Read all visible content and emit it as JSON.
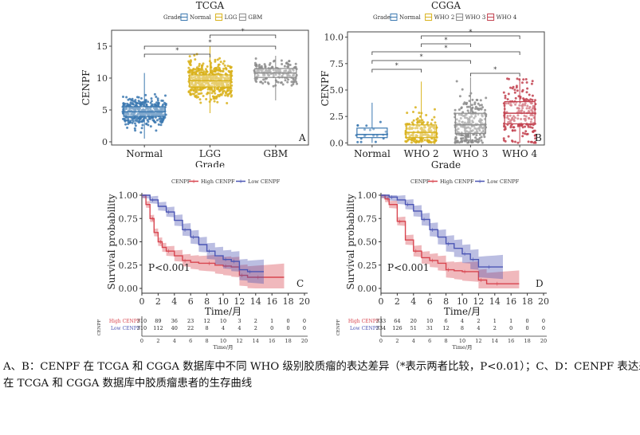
{
  "caption": {
    "line1": "A、B：CENPF 在 TCGA 和 CGGA 数据库中不同 WHO 级别胶质瘤的表达差异（*表示两者比较，P<0.01）；C、D：CENPF 表达差异",
    "line2": "在 TCGA 和 CGGA 数据库中胶质瘤患者的生存曲线"
  },
  "chart_data": [
    {
      "panel": "A",
      "type": "boxplot",
      "title": "TCGA",
      "legend_title": "Grade",
      "legend": [
        "Normal",
        "LGG",
        "GBM"
      ],
      "xlabel": "Grade",
      "ylabel": "CENPF",
      "categories": [
        "Normal",
        "LGG",
        "GBM"
      ],
      "colors": [
        "#3b78b0",
        "#d9b21c",
        "#8c8c8c"
      ],
      "yticks": [
        0,
        5,
        10,
        15
      ],
      "ylim": [
        -0.5,
        17.5
      ],
      "boxes": [
        {
          "min": 0.5,
          "q1": 4.0,
          "median": 4.7,
          "q3": 5.5,
          "max": 10.8
        },
        {
          "min": 4.5,
          "q1": 8.6,
          "median": 9.6,
          "q3": 10.5,
          "max": 15.0
        },
        {
          "min": 6.5,
          "q1": 10.1,
          "median": 10.8,
          "q3": 11.5,
          "max": 13.5
        }
      ],
      "n_points": [
        400,
        500,
        160
      ],
      "significance": [
        {
          "from": 0,
          "to": 1,
          "label": "*"
        },
        {
          "from": 1,
          "to": 2,
          "label": "*"
        },
        {
          "from": 0,
          "to": 2,
          "label": "*"
        }
      ]
    },
    {
      "panel": "B",
      "type": "boxplot",
      "title": "CGGA",
      "legend_title": "Grade",
      "legend": [
        "Normal",
        "WHO 2",
        "WHO 3",
        "WHO 4"
      ],
      "xlabel": "Grade",
      "ylabel": "CENPF",
      "categories": [
        "Normal",
        "WHO 2",
        "WHO 3",
        "WHO 4"
      ],
      "colors": [
        "#3b78b0",
        "#d9b21c",
        "#8c8c8c",
        "#c2414f"
      ],
      "yticks": [
        "0.0",
        "2.5",
        "5.0",
        "7.5",
        "10.0"
      ],
      "ylim": [
        -0.2,
        10.5
      ],
      "boxes": [
        {
          "min": 0.0,
          "q1": 0.5,
          "median": 0.8,
          "q3": 1.4,
          "max": 3.8
        },
        {
          "min": 0.0,
          "q1": 0.5,
          "median": 1.0,
          "q3": 1.7,
          "max": 5.8
        },
        {
          "min": 0.0,
          "q1": 0.9,
          "median": 1.7,
          "q3": 2.8,
          "max": 6.2
        },
        {
          "min": 0.0,
          "q1": 1.8,
          "median": 2.8,
          "q3": 3.9,
          "max": 6.1
        }
      ],
      "n_points": [
        20,
        190,
        240,
        200
      ],
      "significance": [
        {
          "from": 0,
          "to": 1,
          "label": "*"
        },
        {
          "from": 0,
          "to": 2,
          "label": "*"
        },
        {
          "from": 0,
          "to": 3,
          "label": "*"
        },
        {
          "from": 1,
          "to": 2,
          "label": "*"
        },
        {
          "from": 1,
          "to": 3,
          "label": "*"
        },
        {
          "from": 2,
          "to": 3,
          "label": "*"
        }
      ]
    },
    {
      "panel": "C",
      "type": "line",
      "legend_title": "CENPF",
      "series_names": [
        "High CENPF",
        "Low CENPF"
      ],
      "colors": [
        "#d8454f",
        "#4b55b4"
      ],
      "xlabel": "Time/月",
      "ylabel": "Survival probability",
      "xticks": [
        0,
        2,
        4,
        6,
        8,
        10,
        12,
        14,
        16,
        18,
        20
      ],
      "yticks": [
        "0.00",
        "0.25",
        "0.50",
        "0.75",
        "1.00"
      ],
      "pvalue": "P<0.001",
      "series": [
        {
          "name": "High CENPF",
          "x": [
            0,
            0.5,
            1,
            1.5,
            2,
            2.5,
            3,
            4,
            5,
            6,
            7,
            8,
            9,
            10,
            11,
            12,
            13,
            14,
            15,
            16,
            17.5
          ],
          "y": [
            1.0,
            0.9,
            0.75,
            0.6,
            0.5,
            0.44,
            0.4,
            0.35,
            0.3,
            0.28,
            0.27,
            0.27,
            0.25,
            0.24,
            0.23,
            0.14,
            0.12,
            0.12,
            0.12,
            0.12,
            0.12
          ]
        },
        {
          "name": "Low CENPF",
          "x": [
            0,
            1,
            2,
            3,
            4,
            5,
            6,
            7,
            8,
            9,
            10,
            11,
            12,
            13,
            14,
            15
          ],
          "y": [
            1.0,
            0.95,
            0.88,
            0.82,
            0.73,
            0.63,
            0.55,
            0.47,
            0.4,
            0.35,
            0.31,
            0.29,
            0.2,
            0.18,
            0.18,
            0.18
          ]
        }
      ],
      "risk_table": {
        "label": "CENPF",
        "rows": [
          {
            "name": "High CENPF",
            "values": [
              "310",
              "89",
              "36",
              "23",
              "12",
              "10",
              "3",
              "2",
              "1",
              "0",
              "0"
            ]
          },
          {
            "name": "Low CENPF",
            "values": [
              "310",
              "112",
              "40",
              "22",
              "8",
              "4",
              "4",
              "2",
              "0",
              "0",
              "0"
            ]
          }
        ],
        "xticks": [
          "0",
          "2",
          "4",
          "6",
          "8",
          "10",
          "12",
          "14",
          "16",
          "18",
          "20"
        ],
        "xlabel": "Time/月"
      }
    },
    {
      "panel": "D",
      "type": "line",
      "legend_title": "CENPF",
      "series_names": [
        "High CENPF",
        "Low CENPF"
      ],
      "colors": [
        "#d8454f",
        "#4b55b4"
      ],
      "xlabel": "Time/月",
      "ylabel": "Survival probability",
      "xticks": [
        0,
        2,
        4,
        6,
        8,
        10,
        12,
        14,
        16,
        18,
        20
      ],
      "yticks": [
        "0.00",
        "0.25",
        "0.50",
        "0.75",
        "1.00"
      ],
      "pvalue": "P<0.001",
      "series": [
        {
          "name": "High CENPF",
          "x": [
            0,
            0.5,
            1,
            2,
            3,
            4,
            5,
            6,
            7,
            8,
            9,
            10,
            11,
            12,
            13,
            14,
            15,
            17
          ],
          "y": [
            1.0,
            0.96,
            0.9,
            0.72,
            0.52,
            0.4,
            0.33,
            0.3,
            0.27,
            0.2,
            0.19,
            0.18,
            0.18,
            0.09,
            0.05,
            0.05,
            0.05,
            0.05
          ]
        },
        {
          "name": "Low CENPF",
          "x": [
            0,
            1,
            2,
            3,
            4,
            5,
            6,
            7,
            8,
            9,
            10,
            11,
            12,
            13,
            14,
            15
          ],
          "y": [
            1.0,
            0.98,
            0.95,
            0.9,
            0.83,
            0.74,
            0.63,
            0.55,
            0.48,
            0.43,
            0.37,
            0.31,
            0.23,
            0.23,
            0.23,
            0.23
          ]
        }
      ],
      "risk_table": {
        "label": "CENPF",
        "rows": [
          {
            "name": "High CENPF",
            "values": [
              "333",
              "64",
              "20",
              "10",
              "6",
              "4",
              "2",
              "1",
              "1",
              "0",
              "0"
            ]
          },
          {
            "name": "Low CENPF",
            "values": [
              "334",
              "126",
              "51",
              "31",
              "12",
              "8",
              "4",
              "2",
              "0",
              "0",
              "0"
            ]
          }
        ],
        "xticks": [
          "0",
          "2",
          "4",
          "6",
          "8",
          "10",
          "12",
          "14",
          "16",
          "18",
          "20"
        ],
        "xlabel": "Time/月"
      }
    }
  ]
}
